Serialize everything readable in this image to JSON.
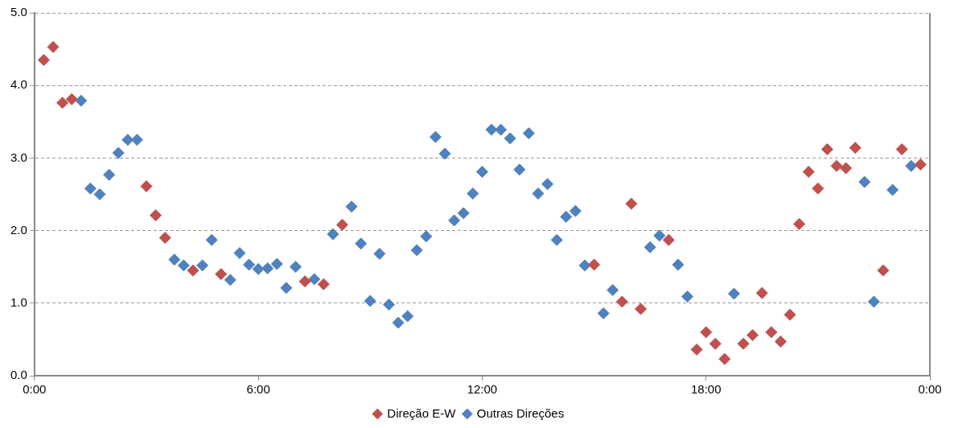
{
  "chart_data": {
    "type": "scatter",
    "marker": "diamond",
    "grid": "y",
    "legend": "bottom",
    "xlim": [
      0,
      24
    ],
    "xticks": [
      {
        "value": 0,
        "label": "0:00"
      },
      {
        "value": 6,
        "label": "6:00"
      },
      {
        "value": 12,
        "label": "12:00"
      },
      {
        "value": 18,
        "label": "18:00"
      },
      {
        "value": 24,
        "label": "0:00"
      }
    ],
    "ylim": [
      0,
      5
    ],
    "yticks": [
      {
        "value": 0,
        "label": "0.0"
      },
      {
        "value": 1,
        "label": "1.0"
      },
      {
        "value": 2,
        "label": "2.0"
      },
      {
        "value": 3,
        "label": "3.0"
      },
      {
        "value": 4,
        "label": "4.0"
      },
      {
        "value": 5,
        "label": "5.0"
      }
    ],
    "series": [
      {
        "name": "Direção E-W",
        "color": "#c0504d",
        "x": [
          0.25,
          0.5,
          0.75,
          1,
          3,
          3.25,
          3.5,
          4.25,
          5,
          7.25,
          7.75,
          8.25,
          15,
          15.75,
          16,
          16.25,
          17,
          17.75,
          18,
          18.25,
          18.5,
          19,
          19.25,
          19.5,
          19.75,
          20,
          20.25,
          20.5,
          20.75,
          21,
          21.25,
          21.5,
          21.75,
          22,
          22.75,
          23.25,
          23.75
        ],
        "values": [
          4.35,
          4.53,
          3.76,
          3.81,
          2.61,
          2.21,
          1.9,
          1.45,
          1.4,
          1.3,
          1.26,
          2.08,
          1.53,
          1.02,
          2.37,
          0.92,
          1.87,
          0.36,
          0.6,
          0.44,
          0.23,
          0.44,
          0.56,
          1.14,
          0.6,
          0.47,
          0.84,
          2.09,
          2.81,
          2.58,
          3.12,
          2.89,
          2.86,
          3.14,
          1.45,
          3.12,
          2.91
        ]
      },
      {
        "name": "Outras Direções",
        "color": "#4f81bd",
        "x": [
          1.25,
          1.5,
          1.75,
          2,
          2.25,
          2.5,
          2.75,
          3.75,
          4,
          4.5,
          4.75,
          5.25,
          5.5,
          5.75,
          6,
          6.25,
          6.5,
          6.75,
          7,
          7.5,
          8,
          8.5,
          8.75,
          9,
          9.25,
          9.5,
          9.75,
          10,
          10.25,
          10.5,
          10.75,
          11,
          11.25,
          11.5,
          11.75,
          12,
          12.25,
          12.5,
          12.75,
          13,
          13.25,
          13.5,
          13.75,
          14,
          14.25,
          14.5,
          14.75,
          15.25,
          15.5,
          16.5,
          16.75,
          17.25,
          17.5,
          18.75,
          22.25,
          22.5,
          23,
          23.5
        ],
        "values": [
          3.79,
          2.58,
          2.5,
          2.77,
          3.07,
          3.25,
          3.25,
          1.6,
          1.52,
          1.52,
          1.87,
          1.32,
          1.69,
          1.53,
          1.47,
          1.48,
          1.54,
          1.21,
          1.5,
          1.33,
          1.95,
          2.33,
          1.82,
          1.03,
          1.68,
          0.98,
          0.73,
          0.82,
          1.73,
          1.92,
          3.29,
          3.06,
          2.14,
          2.24,
          2.51,
          2.81,
          3.39,
          3.39,
          3.27,
          2.84,
          3.34,
          2.51,
          2.64,
          1.87,
          2.19,
          2.27,
          1.52,
          0.86,
          1.18,
          1.77,
          1.93,
          1.53,
          1.09,
          1.13,
          2.67,
          1.02,
          2.56,
          2.89
        ]
      }
    ]
  }
}
